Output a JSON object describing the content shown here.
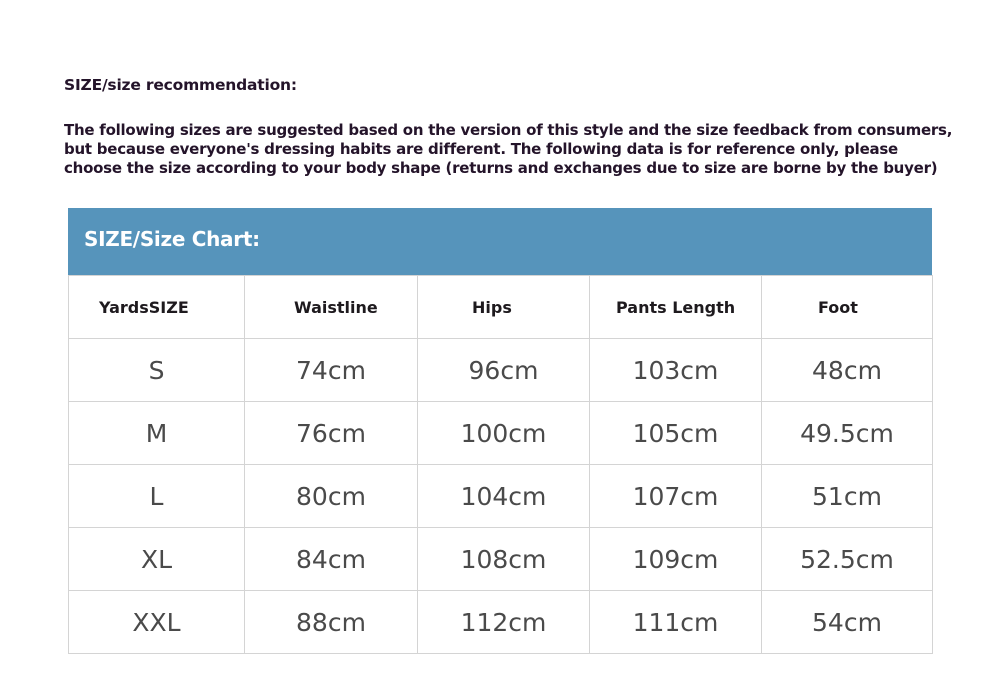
{
  "intro": {
    "title": "SIZE/size recommendation:",
    "lines": [
      "The following sizes are suggested based on the version of this style and the size feedback from consumers,",
      "but because everyone's dressing habits are different. The following data is for reference only, please",
      "choose the size according to your body shape (returns and exchanges due to size are borne by the buyer)"
    ]
  },
  "chart": {
    "title": "SIZE/Size Chart:",
    "header_color": "#5694bb",
    "columns": [
      "YardsSIZE",
      "Waistline",
      "Hips",
      "Pants Length",
      "Foot"
    ],
    "rows": [
      [
        "S",
        "74cm",
        "96cm",
        "103cm",
        "48cm"
      ],
      [
        "M",
        "76cm",
        "100cm",
        "105cm",
        "49.5cm"
      ],
      [
        "L",
        "80cm",
        "104cm",
        "107cm",
        "51cm"
      ],
      [
        "XL",
        "84cm",
        "108cm",
        "109cm",
        "52.5cm"
      ],
      [
        "XXL",
        "88cm",
        "112cm",
        "111cm",
        "54cm"
      ]
    ]
  }
}
